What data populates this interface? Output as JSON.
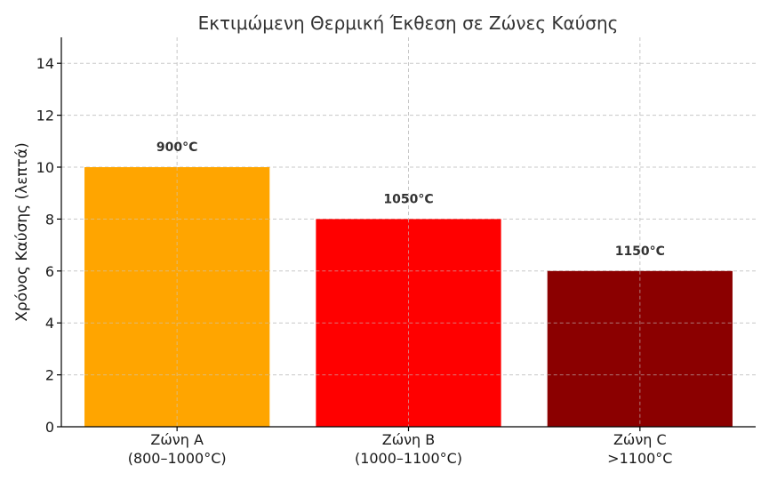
{
  "chart_data": {
    "type": "bar",
    "title": "Εκτιμώμενη Θερμική Έκθεση σε Ζώνες Καύσης",
    "xlabel": "",
    "ylabel": "Χρόνος Καύσης (λεπτά)",
    "ylim": [
      0,
      15
    ],
    "yticks": [
      "0",
      "2",
      "4",
      "6",
      "8",
      "10",
      "12",
      "14"
    ],
    "grid": true,
    "categories": [
      [
        "Ζώνη A",
        "(800–1000°C)"
      ],
      [
        "Ζώνη B",
        "(1000–1100°C)"
      ],
      [
        "Ζώνη C",
        ">1100°C"
      ]
    ],
    "values": [
      10,
      8,
      6
    ],
    "data_labels": [
      "900°C",
      "1050°C",
      "1150°C"
    ],
    "colors": [
      "#FFA500",
      "#FF0000",
      "#8B0000"
    ]
  }
}
